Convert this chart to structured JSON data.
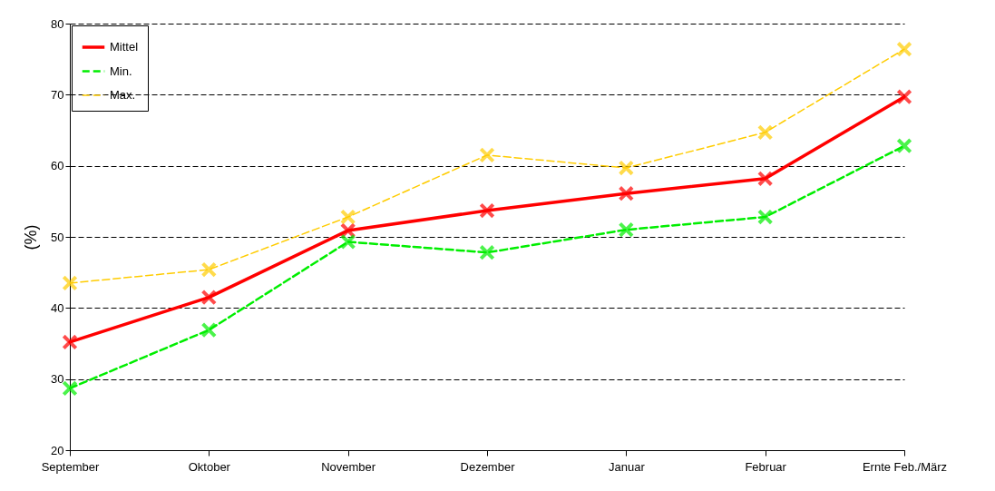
{
  "chart_data": {
    "type": "line",
    "ylabel": "(%)",
    "categories": [
      "September",
      "Oktober",
      "November",
      "Dezember",
      "Januar",
      "Februar",
      "Ernte Feb./März"
    ],
    "series": [
      {
        "name": "Mittel",
        "color": "#ff0000",
        "line_style": "solid",
        "values": [
          35.2,
          41.5,
          50.9,
          53.7,
          56.1,
          58.2,
          69.7
        ]
      },
      {
        "name": "Min.",
        "color": "#00ee00",
        "line_style": "dashed",
        "values": [
          28.7,
          36.9,
          49.3,
          47.8,
          51.0,
          52.8,
          62.8
        ]
      },
      {
        "name": "Max.",
        "color": "#ffcc00",
        "line_style": "dashed",
        "values": [
          43.5,
          45.4,
          52.8,
          61.5,
          59.7,
          64.7,
          76.4
        ]
      }
    ],
    "ylim": [
      20,
      80
    ],
    "yticks": [
      20,
      30,
      40,
      50,
      60,
      70,
      80
    ],
    "grid": "y",
    "legend": "top left",
    "marker": "cross"
  }
}
